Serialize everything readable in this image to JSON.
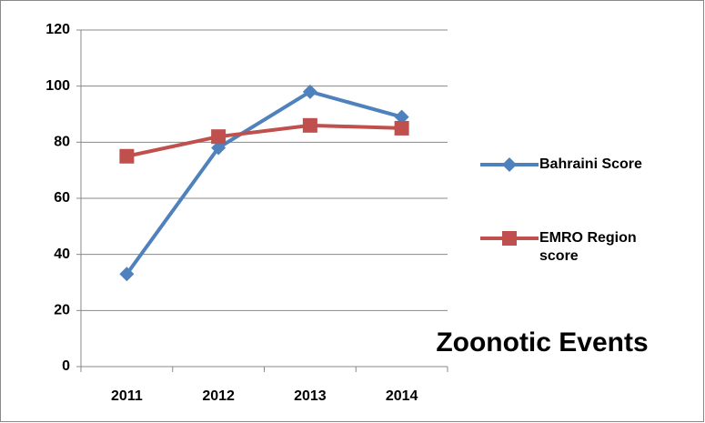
{
  "chart_data": {
    "type": "line",
    "categories": [
      "2011",
      "2012",
      "2013",
      "2014"
    ],
    "series": [
      {
        "name": "Bahraini Score",
        "color": "#4f81bd",
        "marker": "diamond",
        "values": [
          33,
          78,
          98,
          89
        ]
      },
      {
        "name": "EMRO Region score",
        "color": "#c0504d",
        "marker": "square",
        "values": [
          75,
          82,
          86,
          85
        ]
      }
    ],
    "ylim": [
      0,
      120
    ],
    "yticks": [
      0,
      20,
      40,
      60,
      80,
      100,
      120
    ],
    "grid": true,
    "legend": "right",
    "annotation": {
      "text": "Zoonotic Events",
      "color": "#00b050"
    }
  }
}
